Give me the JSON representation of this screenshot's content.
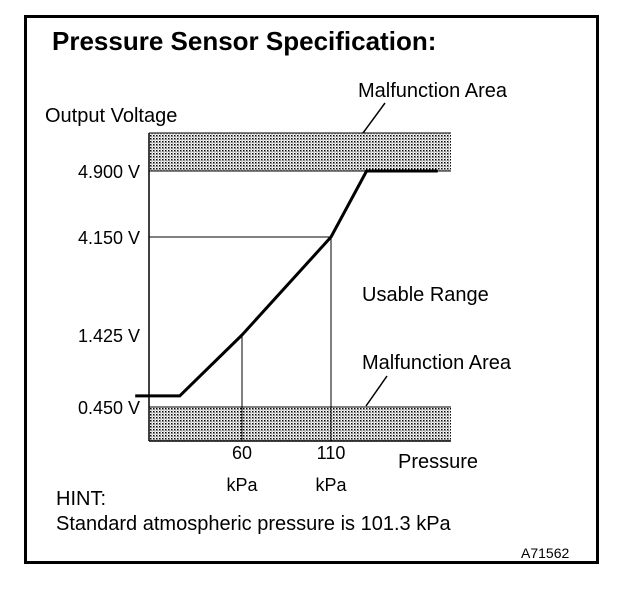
{
  "chart_data": {
    "type": "line",
    "title": "Pressure Sensor Specification:",
    "ylabel": "Output Voltage",
    "xlabel": "Pressure",
    "y_ticks": [
      {
        "value": 4.9,
        "label": "4.900 V"
      },
      {
        "value": 4.15,
        "label": "4.150 V"
      },
      {
        "value": 1.425,
        "label": "1.425 V"
      },
      {
        "value": 0.45,
        "label": "0.450 V"
      }
    ],
    "x_ticks": [
      {
        "value": 60,
        "label": "60",
        "unit": "kPa"
      },
      {
        "value": 110,
        "label": "110",
        "unit": "kPa"
      }
    ],
    "series": [
      {
        "x": [
          0,
          25,
          60,
          110,
          130,
          170
        ],
        "y": [
          0.6,
          0.6,
          1.425,
          4.15,
          4.9,
          4.9
        ]
      }
    ],
    "regions": [
      {
        "label": "Malfunction Area",
        "position": "above",
        "threshold": 4.9
      },
      {
        "label": "Malfunction Area",
        "position": "below",
        "threshold": 0.45
      }
    ],
    "annotations": [
      "Usable Range"
    ],
    "hint_heading": "HINT:",
    "hint_text": "Standard atmospheric pressure is 101.3 kPa",
    "figure_code": "A71562"
  }
}
